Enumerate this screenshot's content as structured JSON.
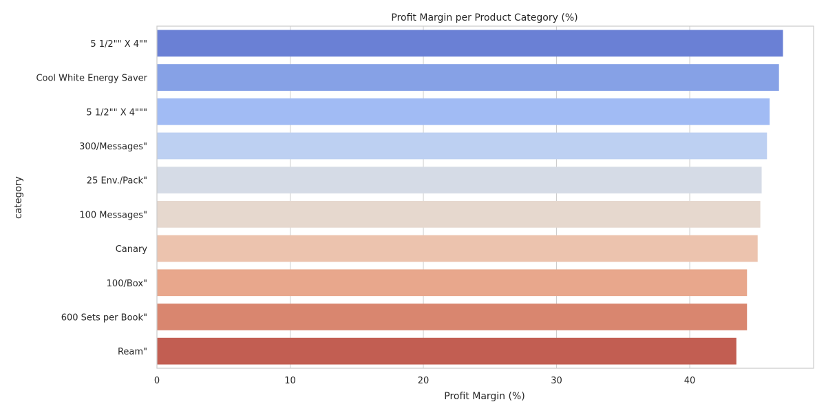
{
  "chart_data": {
    "type": "bar",
    "orientation": "horizontal",
    "title": "Profit Margin per Product Category (%)",
    "xlabel": "Profit Margin (%)",
    "ylabel": "category",
    "xlim": [
      0,
      49.3
    ],
    "xticks": [
      0,
      10,
      20,
      30,
      40
    ],
    "grid": true,
    "categories": [
      "5 1/2\"\" X 4\"\"",
      "Cool White Energy Saver",
      "5 1/2\"\" X 4\"\"\"",
      "300/Messages\"",
      "25 Env./Pack\"",
      "100 Messages\"",
      "Canary",
      "100/Box\"",
      "600 Sets per Book\"",
      "Ream\""
    ],
    "values": [
      47.0,
      46.7,
      46.0,
      45.8,
      45.4,
      45.3,
      45.1,
      44.3,
      44.3,
      43.5
    ],
    "colors": [
      "#6a80d5",
      "#86a1e6",
      "#a1bbf4",
      "#bdd0f2",
      "#d5dbe6",
      "#e6d8ce",
      "#ecc3ae",
      "#e8a78c",
      "#d9866f",
      "#c25e52"
    ]
  }
}
